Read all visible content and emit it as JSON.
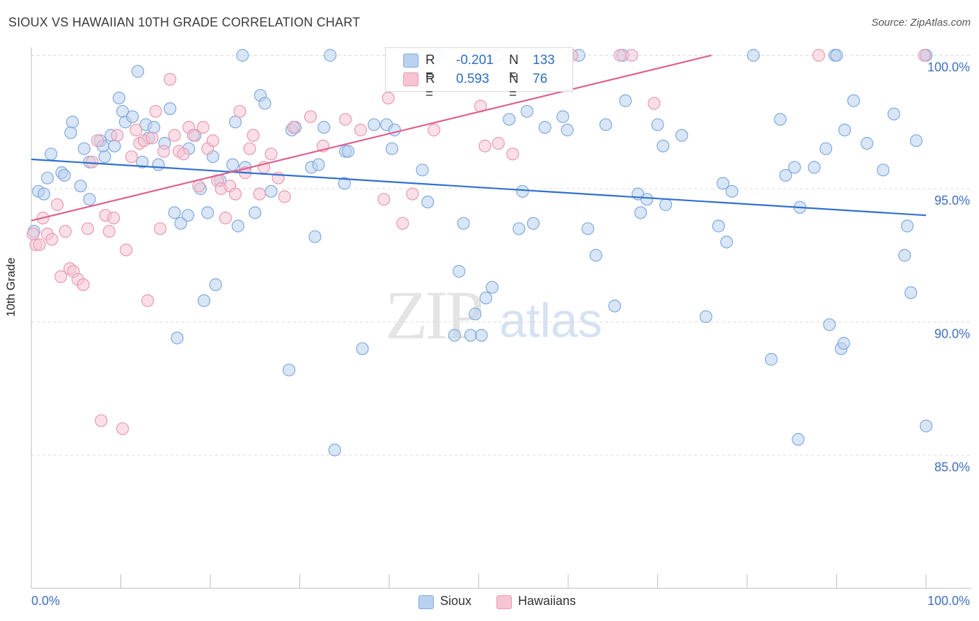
{
  "header": {
    "title": "SIOUX VS HAWAIIAN 10TH GRADE CORRELATION CHART",
    "source": "Source: ZipAtlas.com"
  },
  "watermark": {
    "zip": "ZIP",
    "atlas": "atlas"
  },
  "legend_top": {
    "sioux": {
      "r_label": "R =",
      "r_value": "-0.201",
      "n_label": "N =",
      "n_value": "133"
    },
    "hawaiians": {
      "r_label": "R =",
      "r_value": "0.593",
      "n_label": "N =",
      "n_value": "76"
    }
  },
  "legend_bottom": {
    "sioux": "Sioux",
    "hawaiians": "Hawaiians"
  },
  "colors": {
    "sioux_fill": "#b9d2f1",
    "sioux_stroke": "#7fa8dc",
    "sioux_line": "#2e6fcc",
    "hawaiian_fill": "#f6c4d3",
    "hawaiian_stroke": "#e898b2",
    "hawaiian_line": "#e05d8e",
    "tick_text": "#3f6fc0",
    "grid": "#d9d9d9"
  },
  "chart_data": {
    "type": "scatter",
    "title": "SIOUX VS HAWAIIAN 10TH GRADE CORRELATION CHART",
    "xlabel": "",
    "ylabel": "10th Grade",
    "xlim": [
      0,
      100
    ],
    "ylim": [
      80.0,
      100.5
    ],
    "x_tick_labels": [
      "0.0%",
      "100.0%"
    ],
    "y_ticks": [
      85,
      90,
      95,
      100
    ],
    "y_tick_labels": [
      "85.0%",
      "90.0%",
      "95.0%",
      "100.0%"
    ],
    "grid": "horizontal dashed",
    "legend": "top-center",
    "series": [
      {
        "name": "Sioux",
        "trend": {
          "x": [
            0,
            100
          ],
          "y": [
            96.1,
            94.0
          ]
        },
        "points": [
          [
            0.3,
            93.4
          ],
          [
            0.8,
            94.9
          ],
          [
            1.4,
            94.8
          ],
          [
            1.8,
            95.4
          ],
          [
            2.2,
            96.3
          ],
          [
            3.4,
            95.6
          ],
          [
            3.7,
            95.5
          ],
          [
            4.4,
            97.1
          ],
          [
            4.6,
            97.5
          ],
          [
            5.5,
            95.1
          ],
          [
            5.9,
            96.5
          ],
          [
            6.5,
            94.6
          ],
          [
            6.5,
            96.0
          ],
          [
            7.7,
            96.8
          ],
          [
            8.0,
            96.6
          ],
          [
            8.2,
            96.2
          ],
          [
            8.9,
            97.0
          ],
          [
            9.3,
            96.6
          ],
          [
            9.8,
            98.4
          ],
          [
            10.2,
            97.9
          ],
          [
            10.5,
            97.5
          ],
          [
            11.3,
            97.7
          ],
          [
            11.9,
            99.4
          ],
          [
            12.4,
            96.0
          ],
          [
            12.8,
            97.4
          ],
          [
            13.1,
            96.9
          ],
          [
            13.7,
            97.3
          ],
          [
            14.2,
            95.9
          ],
          [
            14.9,
            96.7
          ],
          [
            15.5,
            98.0
          ],
          [
            16.0,
            94.1
          ],
          [
            16.3,
            89.4
          ],
          [
            16.7,
            93.7
          ],
          [
            17.5,
            94.0
          ],
          [
            17.6,
            96.5
          ],
          [
            18.3,
            97.0
          ],
          [
            18.9,
            95.0
          ],
          [
            19.3,
            90.8
          ],
          [
            19.7,
            94.1
          ],
          [
            20.3,
            96.2
          ],
          [
            20.6,
            91.4
          ],
          [
            21.1,
            95.3
          ],
          [
            22.5,
            95.9
          ],
          [
            22.8,
            97.5
          ],
          [
            23.1,
            93.6
          ],
          [
            23.6,
            100.0
          ],
          [
            23.9,
            95.8
          ],
          [
            25.0,
            94.1
          ],
          [
            25.6,
            98.5
          ],
          [
            26.1,
            98.2
          ],
          [
            26.8,
            94.9
          ],
          [
            28.8,
            88.2
          ],
          [
            29.1,
            97.2
          ],
          [
            29.5,
            97.3
          ],
          [
            31.3,
            95.8
          ],
          [
            31.7,
            93.2
          ],
          [
            32.1,
            95.9
          ],
          [
            32.7,
            97.3
          ],
          [
            33.4,
            100.0
          ],
          [
            33.9,
            85.2
          ],
          [
            35.0,
            95.2
          ],
          [
            35.1,
            96.4
          ],
          [
            35.4,
            96.4
          ],
          [
            37.0,
            89.0
          ],
          [
            38.3,
            97.4
          ],
          [
            39.7,
            97.4
          ],
          [
            40.3,
            96.5
          ],
          [
            40.6,
            97.2
          ],
          [
            43.7,
            95.7
          ],
          [
            44.3,
            94.5
          ],
          [
            45.5,
            100.0
          ],
          [
            47.3,
            89.5
          ],
          [
            47.8,
            91.9
          ],
          [
            48.3,
            93.7
          ],
          [
            49.1,
            89.5
          ],
          [
            49.6,
            90.3
          ],
          [
            50.3,
            89.5
          ],
          [
            50.8,
            90.9
          ],
          [
            51.5,
            91.3
          ],
          [
            52.1,
            100.0
          ],
          [
            53.4,
            97.6
          ],
          [
            54.5,
            93.5
          ],
          [
            54.9,
            94.9
          ],
          [
            55.4,
            97.9
          ],
          [
            56.1,
            93.7
          ],
          [
            57.4,
            97.3
          ],
          [
            59.4,
            97.7
          ],
          [
            59.9,
            97.2
          ],
          [
            61.2,
            100.0
          ],
          [
            62.2,
            93.5
          ],
          [
            63.1,
            92.5
          ],
          [
            64.2,
            97.4
          ],
          [
            65.2,
            90.6
          ],
          [
            66.1,
            100.0
          ],
          [
            66.4,
            98.3
          ],
          [
            67.8,
            94.8
          ],
          [
            68.1,
            94.1
          ],
          [
            68.8,
            94.6
          ],
          [
            70.0,
            97.4
          ],
          [
            70.6,
            96.6
          ],
          [
            70.9,
            94.4
          ],
          [
            72.7,
            97.0
          ],
          [
            75.4,
            90.2
          ],
          [
            76.8,
            93.6
          ],
          [
            77.3,
            95.2
          ],
          [
            77.7,
            93.0
          ],
          [
            78.3,
            94.9
          ],
          [
            80.7,
            100.0
          ],
          [
            82.7,
            88.6
          ],
          [
            83.7,
            97.6
          ],
          [
            84.3,
            95.5
          ],
          [
            85.3,
            95.8
          ],
          [
            85.7,
            85.6
          ],
          [
            85.9,
            94.3
          ],
          [
            87.5,
            95.8
          ],
          [
            88.8,
            96.5
          ],
          [
            89.2,
            89.9
          ],
          [
            89.8,
            100.0
          ],
          [
            90.0,
            100.0
          ],
          [
            90.5,
            89.0
          ],
          [
            90.8,
            89.2
          ],
          [
            90.9,
            97.2
          ],
          [
            91.9,
            98.3
          ],
          [
            93.4,
            96.7
          ],
          [
            95.2,
            95.7
          ],
          [
            96.4,
            97.8
          ],
          [
            97.6,
            92.5
          ],
          [
            97.9,
            93.6
          ],
          [
            98.3,
            91.1
          ],
          [
            98.9,
            96.8
          ],
          [
            100.0,
            86.1
          ],
          [
            100.0,
            100.0
          ],
          [
            100.0,
            100.0
          ]
        ]
      },
      {
        "name": "Hawaiians",
        "trend": {
          "x": [
            0,
            76
          ],
          "y": [
            93.8,
            100.0
          ]
        },
        "points": [
          [
            0.2,
            93.3
          ],
          [
            0.5,
            92.9
          ],
          [
            0.9,
            92.9
          ],
          [
            1.3,
            93.9
          ],
          [
            1.8,
            93.3
          ],
          [
            2.3,
            93.1
          ],
          [
            2.9,
            94.4
          ],
          [
            3.3,
            91.7
          ],
          [
            3.8,
            93.4
          ],
          [
            4.3,
            92.0
          ],
          [
            4.7,
            91.9
          ],
          [
            5.2,
            91.6
          ],
          [
            5.8,
            91.4
          ],
          [
            6.3,
            93.5
          ],
          [
            6.8,
            96.0
          ],
          [
            7.4,
            96.8
          ],
          [
            7.8,
            86.3
          ],
          [
            8.3,
            94.0
          ],
          [
            8.7,
            93.4
          ],
          [
            9.2,
            93.9
          ],
          [
            9.6,
            97.0
          ],
          [
            10.2,
            86.0
          ],
          [
            10.6,
            92.7
          ],
          [
            11.2,
            96.2
          ],
          [
            11.7,
            97.2
          ],
          [
            12.1,
            96.7
          ],
          [
            12.6,
            96.8
          ],
          [
            13.0,
            90.8
          ],
          [
            13.5,
            96.9
          ],
          [
            13.9,
            97.9
          ],
          [
            14.4,
            93.5
          ],
          [
            14.8,
            96.4
          ],
          [
            15.5,
            99.1
          ],
          [
            16.0,
            97.0
          ],
          [
            16.5,
            96.4
          ],
          [
            17.0,
            96.3
          ],
          [
            17.6,
            97.3
          ],
          [
            18.1,
            97.0
          ],
          [
            18.7,
            95.1
          ],
          [
            19.2,
            97.3
          ],
          [
            19.7,
            96.5
          ],
          [
            20.3,
            96.8
          ],
          [
            20.8,
            95.3
          ],
          [
            21.2,
            95.0
          ],
          [
            21.7,
            93.9
          ],
          [
            22.2,
            95.1
          ],
          [
            22.8,
            94.8
          ],
          [
            23.3,
            97.9
          ],
          [
            23.9,
            95.6
          ],
          [
            24.4,
            96.5
          ],
          [
            24.8,
            97.0
          ],
          [
            25.5,
            94.8
          ],
          [
            26.0,
            95.8
          ],
          [
            26.8,
            96.3
          ],
          [
            27.6,
            95.4
          ],
          [
            28.3,
            94.7
          ],
          [
            29.3,
            97.3
          ],
          [
            31.2,
            97.7
          ],
          [
            32.6,
            96.6
          ],
          [
            35.1,
            97.6
          ],
          [
            36.8,
            97.2
          ],
          [
            39.4,
            94.6
          ],
          [
            39.9,
            98.4
          ],
          [
            41.5,
            93.7
          ],
          [
            42.6,
            94.8
          ],
          [
            45.0,
            97.2
          ],
          [
            50.2,
            98.1
          ],
          [
            50.7,
            96.6
          ],
          [
            52.2,
            96.7
          ],
          [
            53.8,
            96.3
          ],
          [
            60.4,
            100.0
          ],
          [
            65.8,
            100.0
          ],
          [
            67.1,
            100.0
          ],
          [
            69.6,
            98.2
          ],
          [
            88.0,
            100.0
          ],
          [
            99.8,
            100.0
          ]
        ]
      }
    ]
  }
}
